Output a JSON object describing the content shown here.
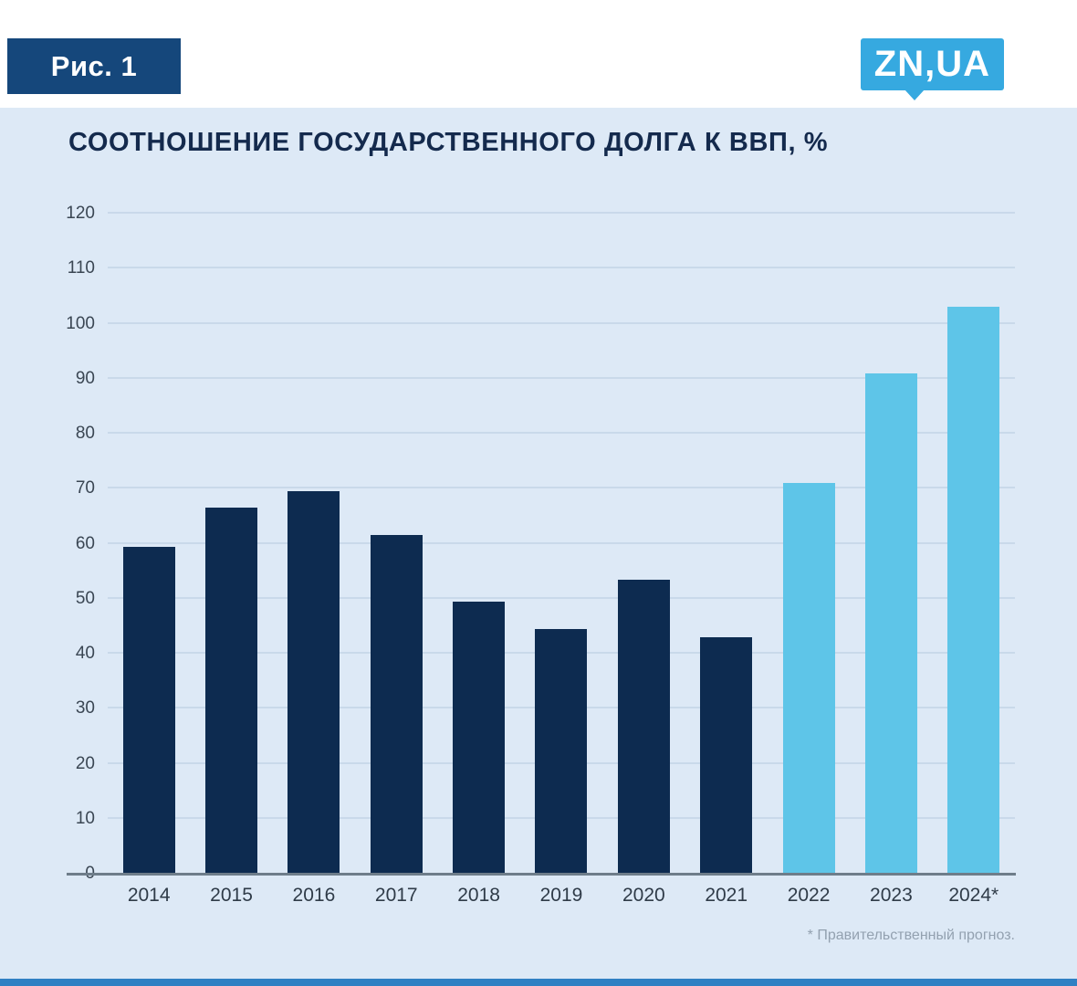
{
  "figure_label": "Рис. 1",
  "logo": {
    "text": "ZN,UA"
  },
  "footnote": "* Правительственный прогноз.",
  "colors": {
    "background": "#dde9f6",
    "bar_actual": "#0d2b50",
    "bar_forecast": "#5ec5e8",
    "figure_label_box": "#15477b",
    "logo_background": "#36a9e0",
    "bottom_accent": "#2f80c3",
    "title_text": "#142a4d"
  },
  "chart_data": {
    "type": "bar",
    "title": "СООТНОШЕНИЕ ГОСУДАРСТВЕННОГО ДОЛГА К ВВП, %",
    "categories": [
      "2014",
      "2015",
      "2016",
      "2017",
      "2018",
      "2019",
      "2020",
      "2021",
      "2022",
      "2023",
      "2024*"
    ],
    "values": [
      59.5,
      66.5,
      69.5,
      61.5,
      49.5,
      44.5,
      53.5,
      43,
      71,
      91,
      103
    ],
    "xlabel": "",
    "ylabel": "",
    "ylim": [
      0,
      120
    ],
    "ytick_step": 10,
    "grid": true,
    "legend": "none",
    "bar_color": "#0d2b50",
    "forecast_color": "#5ec5e8",
    "forecast_indices": [
      8,
      9,
      10
    ],
    "footnote": "* Правительственный прогноз."
  }
}
